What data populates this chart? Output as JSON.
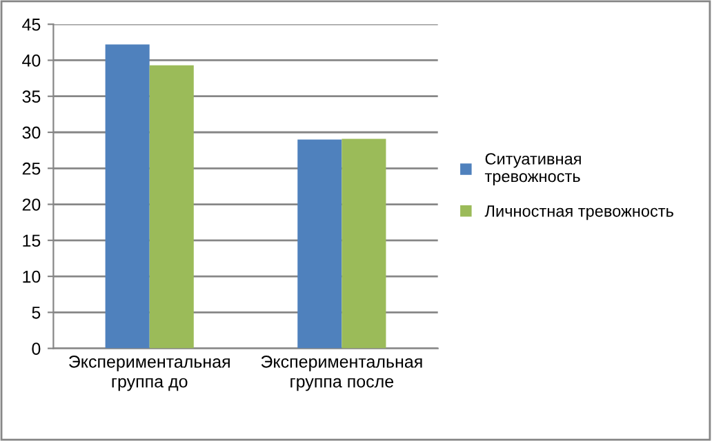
{
  "chart_data": {
    "type": "bar",
    "categories": [
      "Экспериментальная группа до",
      "Экспериментальная группа после"
    ],
    "series": [
      {
        "name": "Ситуативная тревожность",
        "color": "#4f81bd",
        "values": [
          42.2,
          29.0
        ]
      },
      {
        "name": "Личностная тревожность",
        "color": "#9bbb59",
        "values": [
          39.3,
          29.1
        ]
      }
    ],
    "ylim": [
      0,
      45
    ],
    "yticks": [
      0,
      5,
      10,
      15,
      20,
      25,
      30,
      35,
      40,
      45
    ],
    "grid": "y",
    "legend": "right"
  }
}
